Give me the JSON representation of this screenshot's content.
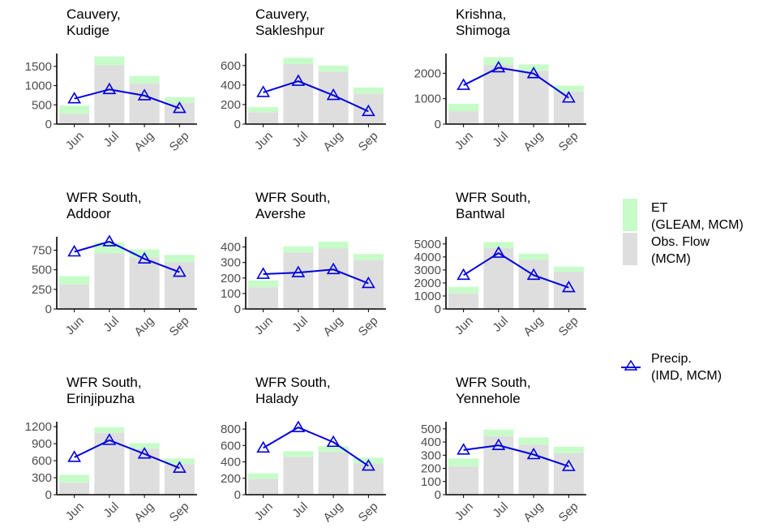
{
  "colors": {
    "et": "#c7fcc9",
    "flow": "#dedede",
    "precip": "#0000dd",
    "axis": "#000000",
    "ticktext": "#4d4d4d"
  },
  "legend": {
    "et_line1": "ET",
    "et_line2": "(GLEAM, MCM)",
    "flow_line1": "Obs. Flow",
    "flow_line2": "(MCM)",
    "precip_line1": "Precip.",
    "precip_line2": "(IMD, MCM)"
  },
  "chart_data": [
    {
      "type": "bar",
      "title_line1": "Cauvery,",
      "title_line2": "Kudige",
      "categories": [
        "Jun",
        "Jul",
        "Aug",
        "Sep"
      ],
      "series": [
        {
          "name": "Obs. Flow (MCM)",
          "values": [
            270,
            1530,
            1060,
            550
          ]
        },
        {
          "name": "ET (GLEAM, MCM)",
          "values": [
            210,
            230,
            190,
            150
          ]
        },
        {
          "name": "Precip. (IMD, MCM)",
          "values": [
            660,
            900,
            740,
            410
          ]
        }
      ],
      "yticks": [
        0,
        500,
        1000,
        1500
      ],
      "ylim": [
        0,
        1750
      ]
    },
    {
      "type": "bar",
      "title_line1": "Cauvery,",
      "title_line2": "Sakleshpur",
      "categories": [
        "Jun",
        "Jul",
        "Aug",
        "Sep"
      ],
      "series": [
        {
          "name": "Obs. Flow (MCM)",
          "values": [
            120,
            615,
            535,
            310
          ]
        },
        {
          "name": "ET (GLEAM, MCM)",
          "values": [
            55,
            65,
            65,
            65
          ]
        },
        {
          "name": "Precip. (IMD, MCM)",
          "values": [
            325,
            440,
            295,
            130
          ]
        }
      ],
      "yticks": [
        0,
        200,
        400,
        600
      ],
      "ylim": [
        0,
        690
      ]
    },
    {
      "type": "bar",
      "title_line1": "Krishna,",
      "title_line2": "Shimoga",
      "categories": [
        "Jun",
        "Jul",
        "Aug",
        "Sep"
      ],
      "series": [
        {
          "name": "Obs. Flow (MCM)",
          "values": [
            500,
            2330,
            2100,
            1280
          ]
        },
        {
          "name": "ET (GLEAM, MCM)",
          "values": [
            300,
            300,
            250,
            240
          ]
        },
        {
          "name": "Precip. (IMD, MCM)",
          "values": [
            1530,
            2220,
            1990,
            1030
          ]
        }
      ],
      "yticks": [
        0,
        1000,
        2000
      ],
      "ylim": [
        0,
        2650
      ]
    },
    {
      "type": "bar",
      "title_line1": "WFR South,",
      "title_line2": "Addoor",
      "categories": [
        "Jun",
        "Jul",
        "Aug",
        "Sep"
      ],
      "series": [
        {
          "name": "Obs. Flow (MCM)",
          "values": [
            310,
            710,
            660,
            600
          ]
        },
        {
          "name": "ET (GLEAM, MCM)",
          "values": [
            110,
            140,
            100,
            90
          ]
        },
        {
          "name": "Precip. (IMD, MCM)",
          "values": [
            730,
            860,
            640,
            470
          ]
        }
      ],
      "yticks": [
        0,
        250,
        500,
        750
      ],
      "ylim": [
        0,
        880
      ]
    },
    {
      "type": "bar",
      "title_line1": "WFR South,",
      "title_line2": "Avershe",
      "categories": [
        "Jun",
        "Jul",
        "Aug",
        "Sep"
      ],
      "series": [
        {
          "name": "Obs. Flow (MCM)",
          "values": [
            140,
            365,
            390,
            315
          ]
        },
        {
          "name": "ET (GLEAM, MCM)",
          "values": [
            45,
            40,
            45,
            40
          ]
        },
        {
          "name": "Precip. (IMD, MCM)",
          "values": [
            225,
            235,
            255,
            165
          ]
        }
      ],
      "yticks": [
        0,
        100,
        200,
        300,
        400
      ],
      "ylim": [
        0,
        445
      ]
    },
    {
      "type": "bar",
      "title_line1": "WFR South,",
      "title_line2": "Bantwal",
      "categories": [
        "Jun",
        "Jul",
        "Aug",
        "Sep"
      ],
      "series": [
        {
          "name": "Obs. Flow (MCM)",
          "values": [
            1200,
            4700,
            3800,
            2850
          ]
        },
        {
          "name": "ET (GLEAM, MCM)",
          "values": [
            500,
            450,
            450,
            400
          ]
        },
        {
          "name": "Precip. (IMD, MCM)",
          "values": [
            2600,
            4300,
            2600,
            1650
          ]
        }
      ],
      "yticks": [
        0,
        1000,
        2000,
        3000,
        4000,
        5000
      ],
      "ylim": [
        0,
        5300
      ]
    },
    {
      "type": "bar",
      "title_line1": "WFR South,",
      "title_line2": "Erinjipuzha",
      "categories": [
        "Jun",
        "Jul",
        "Aug",
        "Sep"
      ],
      "series": [
        {
          "name": "Obs. Flow (MCM)",
          "values": [
            210,
            1090,
            810,
            540
          ]
        },
        {
          "name": "ET (GLEAM, MCM)",
          "values": [
            140,
            100,
            100,
            100
          ]
        },
        {
          "name": "Precip. (IMD, MCM)",
          "values": [
            660,
            960,
            720,
            470
          ]
        }
      ],
      "yticks": [
        0,
        300,
        600,
        900,
        1200
      ],
      "ylim": [
        0,
        1230
      ]
    },
    {
      "type": "bar",
      "title_line1": "WFR South,",
      "title_line2": "Halady",
      "categories": [
        "Jun",
        "Jul",
        "Aug",
        "Sep"
      ],
      "series": [
        {
          "name": "Obs. Flow (MCM)",
          "values": [
            190,
            460,
            520,
            380
          ]
        },
        {
          "name": "ET (GLEAM, MCM)",
          "values": [
            70,
            70,
            70,
            70
          ]
        },
        {
          "name": "Precip. (IMD, MCM)",
          "values": [
            570,
            820,
            640,
            350
          ]
        }
      ],
      "yticks": [
        0,
        200,
        400,
        600,
        800
      ],
      "ylim": [
        0,
        850
      ]
    },
    {
      "type": "bar",
      "title_line1": "WFR South,",
      "title_line2": "Yennehole",
      "categories": [
        "Jun",
        "Jul",
        "Aug",
        "Sep"
      ],
      "series": [
        {
          "name": "Obs. Flow (MCM)",
          "values": [
            215,
            445,
            380,
            315
          ]
        },
        {
          "name": "ET (GLEAM, MCM)",
          "values": [
            60,
            50,
            55,
            50
          ]
        },
        {
          "name": "Precip. (IMD, MCM)",
          "values": [
            340,
            375,
            305,
            215
          ]
        }
      ],
      "yticks": [
        0,
        100,
        200,
        300,
        400,
        500
      ],
      "ylim": [
        0,
        530
      ]
    }
  ]
}
